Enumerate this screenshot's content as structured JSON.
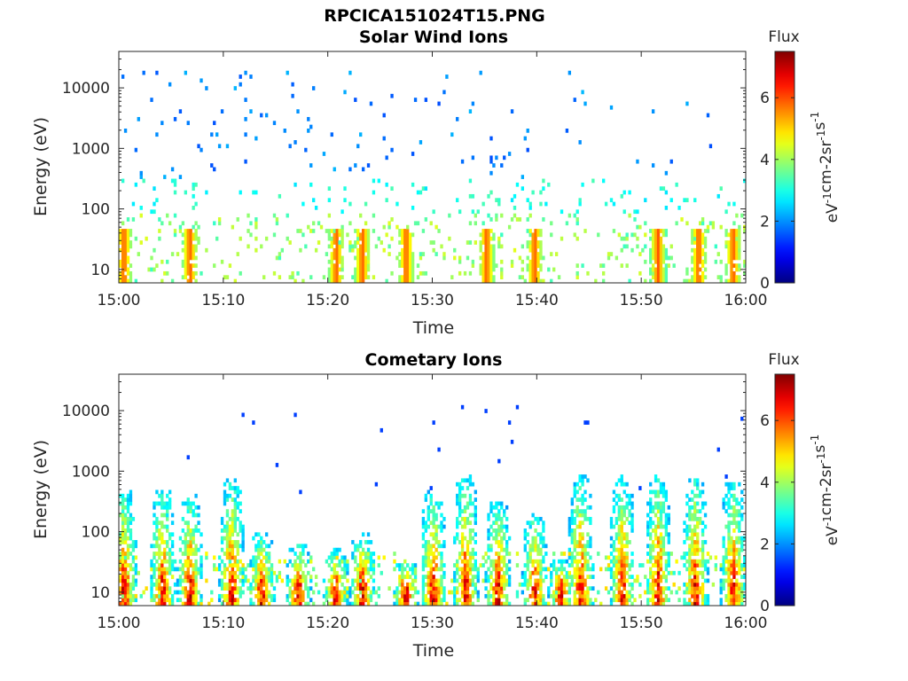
{
  "figure": {
    "title": "RPCICA151024T15.PNG"
  },
  "colormap": "jet",
  "chart_data": [
    {
      "type": "heatmap",
      "title": "Solar Wind Ions",
      "xlabel": "Time",
      "ylabel": "Energy (eV)",
      "x_ticks": [
        "15:00",
        "15:10",
        "15:20",
        "15:30",
        "15:40",
        "15:50",
        "16:00"
      ],
      "x_range_minutes": [
        0,
        60
      ],
      "y_scale": "log",
      "y_ticks": [
        "10",
        "100",
        "1000",
        "10000"
      ],
      "y_range": [
        6,
        40000
      ],
      "colorbar": {
        "title": "Flux",
        "label": "eV-1cm-2sr-1s-1",
        "ticks": [
          "0",
          "2",
          "4",
          "6"
        ],
        "range": [
          0,
          7.5
        ]
      },
      "low_band_peaks_minutes": [
        0.5,
        6.8,
        20.8,
        23.3,
        27.5,
        35.2,
        39.8,
        51.6,
        55.5,
        58.8
      ],
      "low_band_peak_flux": 6.0,
      "sparse_high_energy_flux": 1.5
    },
    {
      "type": "heatmap",
      "title": "Cometary Ions",
      "xlabel": "Time",
      "ylabel": "Energy (eV)",
      "x_ticks": [
        "15:00",
        "15:10",
        "15:20",
        "15:30",
        "15:40",
        "15:50",
        "16:00"
      ],
      "x_range_minutes": [
        0,
        60
      ],
      "y_scale": "log",
      "y_ticks": [
        "10",
        "100",
        "1000",
        "10000"
      ],
      "y_range": [
        6,
        40000
      ],
      "colorbar": {
        "title": "Flux",
        "label": "eV-1cm-2sr-1s-1",
        "ticks": [
          "0",
          "2",
          "4",
          "6"
        ],
        "range": [
          0,
          7.5
        ]
      },
      "burst_centers_minutes": [
        0.5,
        4.2,
        6.8,
        10.8,
        13.7,
        17.2,
        20.8,
        23.3,
        27.5,
        30.1,
        33.2,
        36.3,
        39.8,
        42.3,
        44.2,
        48.2,
        51.6,
        55.2,
        58.8
      ],
      "peak_flux": 7.0,
      "burst_top_energy_eV": 900
    }
  ]
}
